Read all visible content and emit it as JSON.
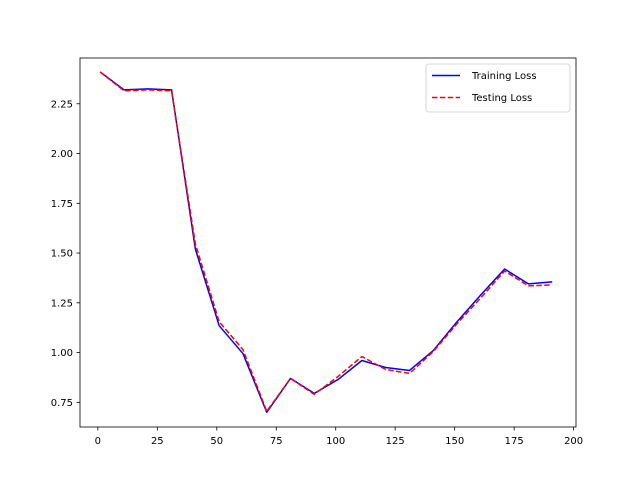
{
  "chart_data": {
    "type": "line",
    "title": "",
    "xlabel": "",
    "ylabel": "",
    "xlim": [
      -7.5,
      201
    ],
    "ylim": [
      0.626,
      2.48
    ],
    "xticks": [
      0,
      25,
      50,
      75,
      100,
      125,
      150,
      175,
      200
    ],
    "yticks": [
      0.75,
      1.0,
      1.25,
      1.5,
      1.75,
      2.0,
      2.25
    ],
    "xtick_labels": [
      "0",
      "25",
      "50",
      "75",
      "100",
      "125",
      "150",
      "175",
      "200"
    ],
    "ytick_labels": [
      "0.75",
      "1.00",
      "1.25",
      "1.50",
      "1.75",
      "2.00",
      "2.25"
    ],
    "grid": false,
    "legend_position": "top-right",
    "x": [
      1,
      11,
      21,
      31,
      41,
      51,
      61,
      71,
      81,
      91,
      101,
      111,
      121,
      131,
      141,
      151,
      161,
      171,
      181,
      191
    ],
    "series": [
      {
        "name": "Training Loss",
        "color": "#0000ff",
        "dash": "solid",
        "values": [
          2.41,
          2.32,
          2.325,
          2.32,
          1.52,
          1.135,
          0.995,
          0.7,
          0.87,
          0.795,
          0.865,
          0.96,
          0.925,
          0.91,
          1.01,
          1.155,
          1.29,
          1.42,
          1.345,
          1.355
        ]
      },
      {
        "name": "Testing Loss",
        "color": "#ff0000",
        "dash": "dashed",
        "values": [
          2.41,
          2.315,
          2.32,
          2.315,
          1.545,
          1.155,
          1.015,
          0.705,
          0.87,
          0.79,
          0.88,
          0.98,
          0.915,
          0.895,
          1.005,
          1.145,
          1.275,
          1.41,
          1.335,
          1.34
        ]
      }
    ]
  }
}
